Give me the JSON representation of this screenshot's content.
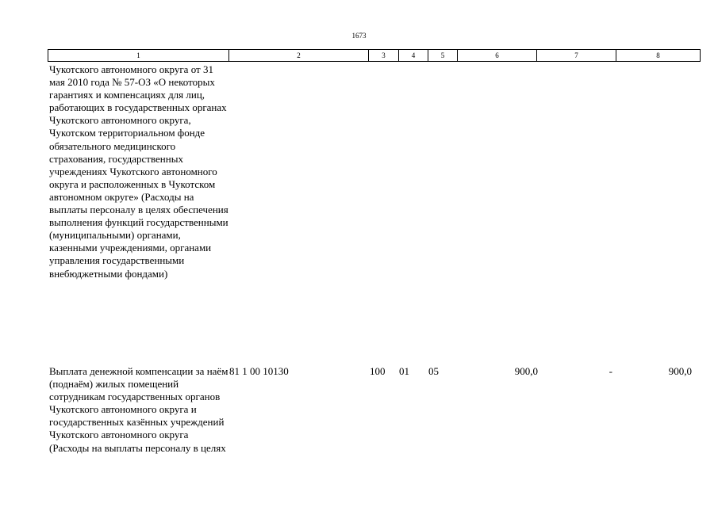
{
  "page_number": "1673",
  "header_columns": [
    "1",
    "2",
    "3",
    "4",
    "5",
    "6",
    "7",
    "8"
  ],
  "rows": [
    {
      "name": "Чукотского автономного округа от 31 мая 2010 года № 57-ОЗ «О некоторых гарантиях и компенсациях для лиц, работающих в государственных органах Чукотского автономного округа, Чукотском территориальном фонде обязательного медицинского страхования, государственных учреждениях Чукотского автономного округа и расположенных в Чукотском автономном округе» (Расходы на выплаты персоналу в целях обеспечения выполнения функций государственными (муниципальными) органами, казенными учреждениями, органами управления государственными внебюджетными фондами)",
      "code": "",
      "c3": "",
      "c4": "",
      "c5": "",
      "c6": "",
      "c7": "",
      "c8": ""
    },
    {
      "name": "Выплата денежной компенсации за наём (поднаём) жилых помещений сотрудникам государственных органов Чукотского автономного округа и государственных казённых учреждений Чукотского автономного округа (Расходы на выплаты персоналу в целях",
      "code": "81 1 00 10130",
      "c3": "100",
      "c4": "01",
      "c5": "05",
      "c6": "900,0",
      "c7": "-",
      "c8": "900,0"
    }
  ]
}
